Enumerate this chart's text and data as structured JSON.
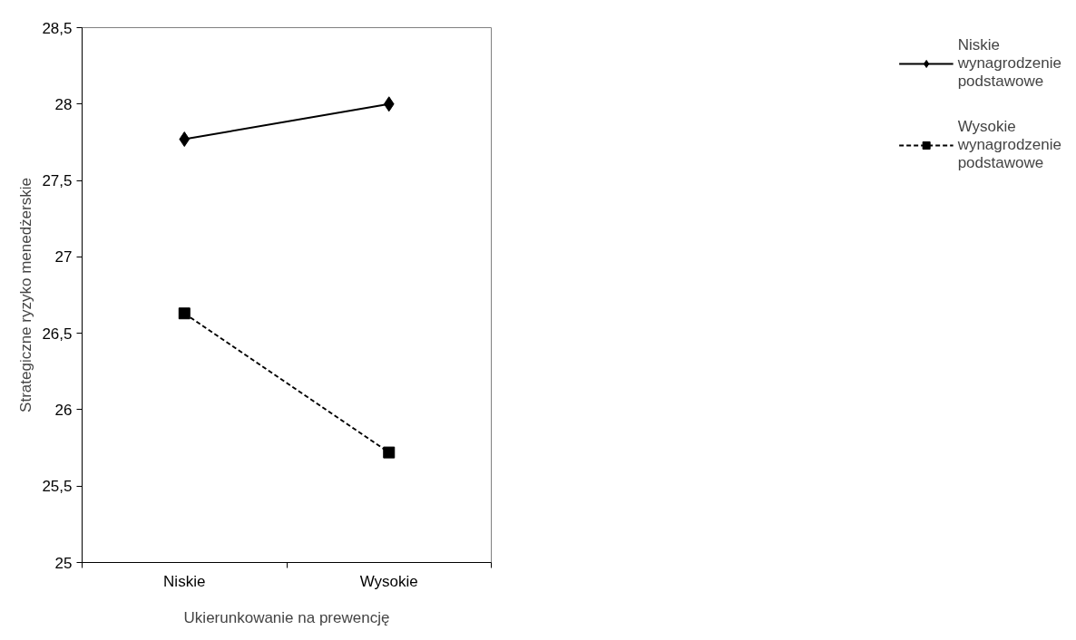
{
  "chart_data": {
    "type": "line",
    "xlabel": "Ukierunkowanie na prewencję",
    "ylabel": "Strategiczne ryzyko menedżerskie",
    "categories": [
      "Niskie",
      "Wysokie"
    ],
    "series": [
      {
        "name": "Niskie wynagrodzenie podstawowe",
        "color": "#000000",
        "values": [
          27.77,
          28.0
        ],
        "marker": "diamond",
        "line_style": "solid"
      },
      {
        "name": "Wysokie wynagrodzenie podstawowe",
        "color": "#000000",
        "values": [
          26.63,
          25.72
        ],
        "marker": "square",
        "line_style": "dashed"
      }
    ],
    "ylim": [
      25,
      28.5
    ],
    "yticks": [
      25,
      {
        "value": 25.5,
        "label": "25,5"
      },
      26,
      {
        "value": 26.5,
        "label": "26,5"
      },
      27,
      {
        "value": 27.5,
        "label": "27,5"
      },
      28,
      {
        "value": 28.5,
        "label": "28,5"
      }
    ],
    "grid": false,
    "legend": "right"
  }
}
